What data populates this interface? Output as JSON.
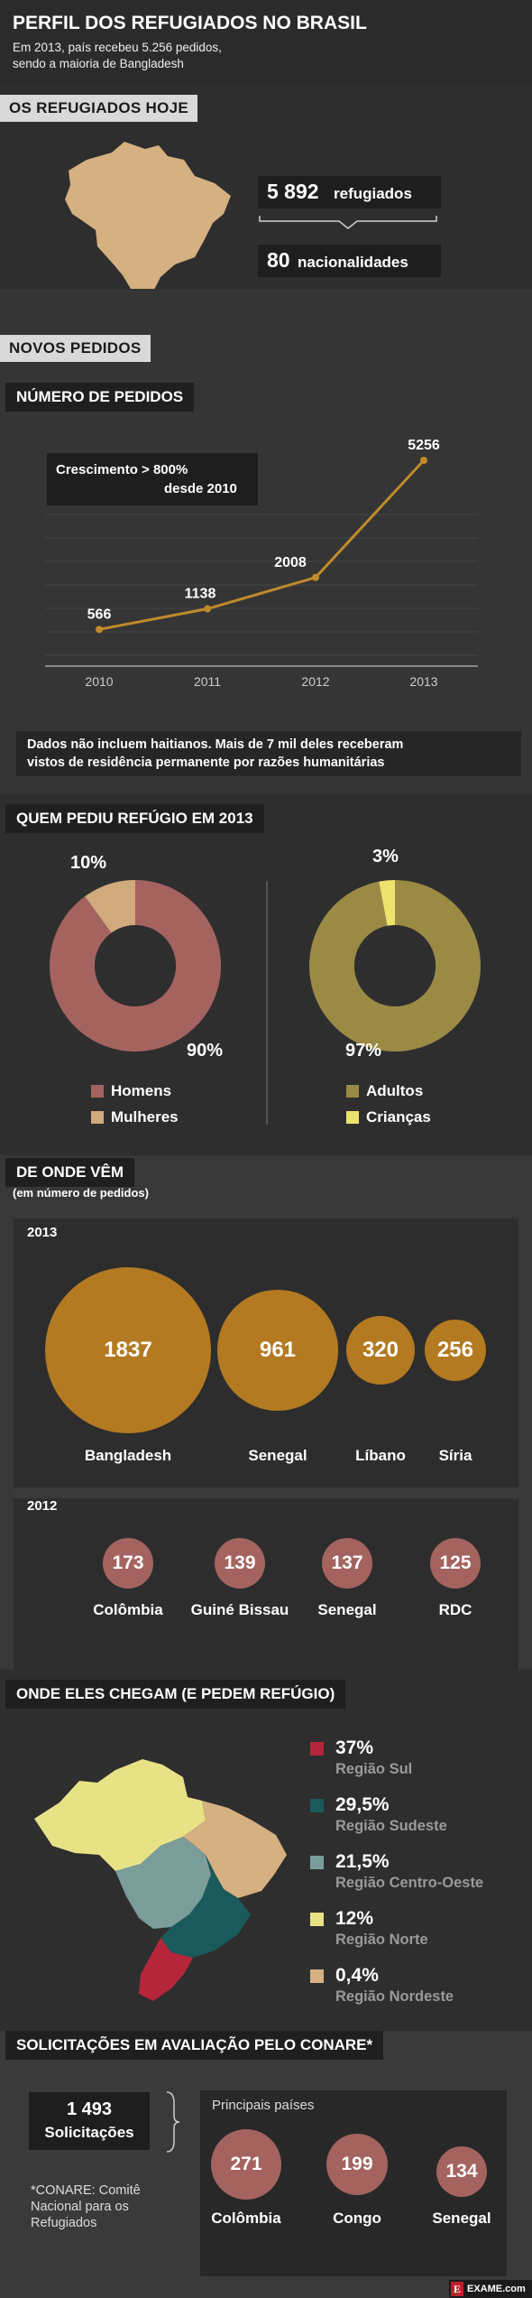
{
  "colors": {
    "gold": "#b37a21",
    "rose": "#a4635f",
    "sul": "#b5263a",
    "sudeste": "#1a5a5c",
    "centro": "#7b9d9a",
    "norte": "#e8e287",
    "nordeste": "#d5b081",
    "homens": "#a4635f",
    "mulheres": "#d0a97c",
    "adultos": "#9a8a44",
    "criancas": "#ece26e"
  },
  "header": {
    "title": "PERFIL DOS REFUGIADOS NO BRASIL",
    "subtitle1": "Em 2013, país recebeu 5.256 pedidos,",
    "subtitle2": "sendo a maioria de Bangladesh"
  },
  "hoje": {
    "label": "OS REFUGIADOS HOJE",
    "refugiados_num": "5 892",
    "refugiados_word": "refugiados",
    "nac_num": "80",
    "nac_word": "nacionalidades"
  },
  "novos": {
    "label": "NOVOS PEDIDOS"
  },
  "chart_data": [
    {
      "type": "line",
      "title": "NÚMERO DE PEDIDOS",
      "x": [
        "2010",
        "2011",
        "2012",
        "2013"
      ],
      "series": [
        {
          "values": [
            566,
            1138,
            2008,
            5256
          ]
        }
      ],
      "annotation1": "Crescimento > 800%",
      "annotation2": "desde 2010",
      "note1": "Dados não incluem haitianos. Mais de 7 mil deles receberam",
      "note2": "vistos de residência permanente por razões humanitárias"
    },
    {
      "type": "pie",
      "title": "QUEM PEDIU REFÚGIO EM 2013",
      "categories": [
        "Homens",
        "Mulheres"
      ],
      "values": [
        90,
        10
      ],
      "labels": [
        "90%",
        "10%"
      ],
      "colors": [
        "#a4635f",
        "#d0a97c"
      ]
    },
    {
      "type": "pie",
      "categories": [
        "Adultos",
        "Crianças"
      ],
      "values": [
        97,
        3
      ],
      "labels": [
        "97%",
        "3%"
      ],
      "colors": [
        "#9a8a44",
        "#ece26e"
      ]
    },
    {
      "type": "bubble",
      "title": "DE ONDE VÊM",
      "subtitle": "(em número de pedidos)",
      "year": "2013",
      "categories": [
        "Bangladesh",
        "Senegal",
        "Líbano",
        "Síria"
      ],
      "values": [
        1837,
        961,
        320,
        256
      ]
    },
    {
      "type": "bubble",
      "year": "2012",
      "categories": [
        "Colômbia",
        "Guiné Bissau",
        "Senegal",
        "RDC"
      ],
      "values": [
        173,
        139,
        137,
        125
      ]
    },
    {
      "type": "map",
      "title": "ONDE ELES CHEGAM (E PEDEM REFÚGIO)",
      "categories": [
        "Região Sul",
        "Região Sudeste",
        "Região Centro-Oeste",
        "Região Norte",
        "Região Nordeste"
      ],
      "values": [
        "37%",
        "29,5%",
        "21,5%",
        "12%",
        "0,4%"
      ]
    },
    {
      "type": "bubble",
      "title": "SOLICITAÇÕES EM AVALIAÇÃO PELO CONARE*",
      "heading": "Principais países",
      "categories": [
        "Colômbia",
        "Congo",
        "Senegal"
      ],
      "values": [
        271,
        199,
        134
      ]
    }
  ],
  "conare": {
    "num": "1 493",
    "word": "Solicitações",
    "foot1": "*CONARE: Comitê",
    "foot2": "Nacional para os",
    "foot3": "Refugiados"
  },
  "brand": {
    "logo_letter": "E",
    "logo_text": "EXAME.com"
  }
}
